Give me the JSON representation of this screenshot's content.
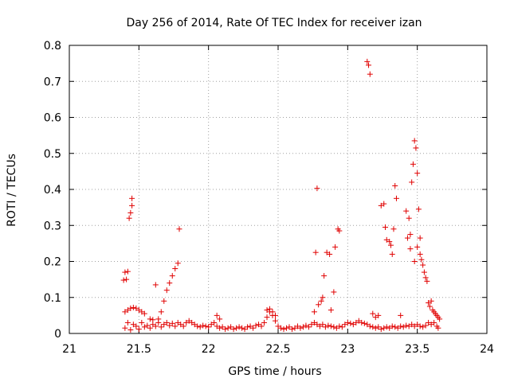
{
  "chart_data": {
    "type": "scatter",
    "title": "Day 256 of 2014, Rate Of TEC Index for receiver izan",
    "xlabel": "GPS time / hours",
    "ylabel": "ROTI / TECUs",
    "xlim": [
      21,
      24
    ],
    "ylim": [
      0,
      0.8
    ],
    "xticks": [
      "21",
      "21.5",
      "22",
      "22.5",
      "23",
      "23.5",
      "24"
    ],
    "yticks": [
      "0",
      "0.1",
      "0.2",
      "0.3",
      "0.4",
      "0.5",
      "0.6",
      "0.7",
      "0.8"
    ],
    "grid": true,
    "marker": "+",
    "color": "#e00000",
    "series": [
      {
        "name": "ROTI",
        "points": [
          [
            21.4,
            0.015
          ],
          [
            21.42,
            0.03
          ],
          [
            21.44,
            0.01
          ],
          [
            21.46,
            0.025
          ],
          [
            21.48,
            0.02
          ],
          [
            21.5,
            0.012
          ],
          [
            21.52,
            0.03
          ],
          [
            21.54,
            0.018
          ],
          [
            21.56,
            0.022
          ],
          [
            21.58,
            0.015
          ],
          [
            21.6,
            0.025
          ],
          [
            21.62,
            0.02
          ],
          [
            21.64,
            0.03
          ],
          [
            21.66,
            0.018
          ],
          [
            21.68,
            0.025
          ],
          [
            21.7,
            0.03
          ],
          [
            21.72,
            0.022
          ],
          [
            21.74,
            0.028
          ],
          [
            21.76,
            0.02
          ],
          [
            21.78,
            0.03
          ],
          [
            21.8,
            0.025
          ],
          [
            21.82,
            0.02
          ],
          [
            21.84,
            0.03
          ],
          [
            21.86,
            0.035
          ],
          [
            21.88,
            0.03
          ],
          [
            21.9,
            0.025
          ],
          [
            21.92,
            0.02
          ],
          [
            21.94,
            0.018
          ],
          [
            21.96,
            0.022
          ],
          [
            21.98,
            0.02
          ],
          [
            22.0,
            0.018
          ],
          [
            22.02,
            0.025
          ],
          [
            22.04,
            0.03
          ],
          [
            22.06,
            0.02
          ],
          [
            22.08,
            0.015
          ],
          [
            22.1,
            0.018
          ],
          [
            22.12,
            0.012
          ],
          [
            22.14,
            0.015
          ],
          [
            22.16,
            0.018
          ],
          [
            22.18,
            0.012
          ],
          [
            22.2,
            0.015
          ],
          [
            22.22,
            0.018
          ],
          [
            22.24,
            0.015
          ],
          [
            22.26,
            0.012
          ],
          [
            22.28,
            0.018
          ],
          [
            22.3,
            0.02
          ],
          [
            22.32,
            0.015
          ],
          [
            22.34,
            0.022
          ],
          [
            22.36,
            0.025
          ],
          [
            22.38,
            0.02
          ],
          [
            22.4,
            0.03
          ],
          [
            22.42,
            0.045
          ],
          [
            22.44,
            0.06
          ],
          [
            22.46,
            0.05
          ],
          [
            22.48,
            0.035
          ],
          [
            22.5,
            0.02
          ],
          [
            22.52,
            0.015
          ],
          [
            22.54,
            0.012
          ],
          [
            22.56,
            0.015
          ],
          [
            22.58,
            0.018
          ],
          [
            22.6,
            0.012
          ],
          [
            22.62,
            0.015
          ],
          [
            22.64,
            0.02
          ],
          [
            22.66,
            0.015
          ],
          [
            22.68,
            0.018
          ],
          [
            22.7,
            0.022
          ],
          [
            22.72,
            0.018
          ],
          [
            22.74,
            0.025
          ],
          [
            22.76,
            0.03
          ],
          [
            22.78,
            0.025
          ],
          [
            22.8,
            0.02
          ],
          [
            22.82,
            0.025
          ],
          [
            22.84,
            0.018
          ],
          [
            22.86,
            0.022
          ],
          [
            22.88,
            0.02
          ],
          [
            22.9,
            0.018
          ],
          [
            22.92,
            0.015
          ],
          [
            22.94,
            0.02
          ],
          [
            22.96,
            0.018
          ],
          [
            22.98,
            0.025
          ],
          [
            23.0,
            0.03
          ],
          [
            23.02,
            0.028
          ],
          [
            23.04,
            0.025
          ],
          [
            23.06,
            0.03
          ],
          [
            23.08,
            0.035
          ],
          [
            23.1,
            0.03
          ],
          [
            23.12,
            0.028
          ],
          [
            23.14,
            0.025
          ],
          [
            23.16,
            0.02
          ],
          [
            23.18,
            0.018
          ],
          [
            23.2,
            0.015
          ],
          [
            23.22,
            0.018
          ],
          [
            23.24,
            0.012
          ],
          [
            23.26,
            0.015
          ],
          [
            23.28,
            0.018
          ],
          [
            23.3,
            0.015
          ],
          [
            23.32,
            0.02
          ],
          [
            23.34,
            0.018
          ],
          [
            23.36,
            0.015
          ],
          [
            23.38,
            0.02
          ],
          [
            23.4,
            0.018
          ],
          [
            23.42,
            0.022
          ],
          [
            23.44,
            0.02
          ],
          [
            23.46,
            0.025
          ],
          [
            23.48,
            0.02
          ],
          [
            23.5,
            0.025
          ],
          [
            23.52,
            0.02
          ],
          [
            23.54,
            0.018
          ],
          [
            23.56,
            0.022
          ],
          [
            23.58,
            0.03
          ],
          [
            23.6,
            0.025
          ],
          [
            23.62,
            0.03
          ],
          [
            23.64,
            0.02
          ],
          [
            23.65,
            0.015
          ],
          [
            21.39,
            0.148
          ],
          [
            21.4,
            0.17
          ],
          [
            21.42,
            0.172
          ],
          [
            21.41,
            0.15
          ],
          [
            21.43,
            0.32
          ],
          [
            21.44,
            0.335
          ],
          [
            21.45,
            0.355
          ],
          [
            21.45,
            0.375
          ],
          [
            21.4,
            0.06
          ],
          [
            21.42,
            0.065
          ],
          [
            21.44,
            0.07
          ],
          [
            21.46,
            0.072
          ],
          [
            21.48,
            0.07
          ],
          [
            21.5,
            0.065
          ],
          [
            21.52,
            0.06
          ],
          [
            21.54,
            0.055
          ],
          [
            21.58,
            0.04
          ],
          [
            21.6,
            0.038
          ],
          [
            21.62,
            0.135
          ],
          [
            21.64,
            0.04
          ],
          [
            21.66,
            0.06
          ],
          [
            21.68,
            0.09
          ],
          [
            21.7,
            0.12
          ],
          [
            21.72,
            0.14
          ],
          [
            21.74,
            0.16
          ],
          [
            21.76,
            0.18
          ],
          [
            21.78,
            0.195
          ],
          [
            21.79,
            0.29
          ],
          [
            22.06,
            0.05
          ],
          [
            22.08,
            0.04
          ],
          [
            22.42,
            0.065
          ],
          [
            22.44,
            0.068
          ],
          [
            22.46,
            0.06
          ],
          [
            22.48,
            0.05
          ],
          [
            22.76,
            0.06
          ],
          [
            22.77,
            0.225
          ],
          [
            22.78,
            0.403
          ],
          [
            22.79,
            0.08
          ],
          [
            22.81,
            0.09
          ],
          [
            22.82,
            0.1
          ],
          [
            22.83,
            0.16
          ],
          [
            22.85,
            0.225
          ],
          [
            22.87,
            0.22
          ],
          [
            22.88,
            0.065
          ],
          [
            22.9,
            0.115
          ],
          [
            22.91,
            0.24
          ],
          [
            22.93,
            0.29
          ],
          [
            22.94,
            0.285
          ],
          [
            23.14,
            0.755
          ],
          [
            23.15,
            0.745
          ],
          [
            23.16,
            0.72
          ],
          [
            23.18,
            0.055
          ],
          [
            23.2,
            0.045
          ],
          [
            23.22,
            0.05
          ],
          [
            23.24,
            0.355
          ],
          [
            23.26,
            0.36
          ],
          [
            23.27,
            0.295
          ],
          [
            23.28,
            0.26
          ],
          [
            23.3,
            0.255
          ],
          [
            23.31,
            0.245
          ],
          [
            23.32,
            0.22
          ],
          [
            23.33,
            0.29
          ],
          [
            23.34,
            0.41
          ],
          [
            23.35,
            0.375
          ],
          [
            23.38,
            0.05
          ],
          [
            23.42,
            0.34
          ],
          [
            23.43,
            0.265
          ],
          [
            23.44,
            0.32
          ],
          [
            23.45,
            0.275
          ],
          [
            23.46,
            0.42
          ],
          [
            23.47,
            0.47
          ],
          [
            23.48,
            0.535
          ],
          [
            23.49,
            0.515
          ],
          [
            23.5,
            0.445
          ],
          [
            23.51,
            0.345
          ],
          [
            23.52,
            0.265
          ],
          [
            23.45,
            0.235
          ],
          [
            23.48,
            0.2
          ],
          [
            23.5,
            0.24
          ],
          [
            23.52,
            0.22
          ],
          [
            23.53,
            0.205
          ],
          [
            23.54,
            0.19
          ],
          [
            23.55,
            0.17
          ],
          [
            23.56,
            0.155
          ],
          [
            23.57,
            0.145
          ],
          [
            23.58,
            0.085
          ],
          [
            23.59,
            0.075
          ],
          [
            23.6,
            0.09
          ],
          [
            23.61,
            0.065
          ],
          [
            23.62,
            0.06
          ],
          [
            23.63,
            0.055
          ],
          [
            23.64,
            0.05
          ],
          [
            23.65,
            0.045
          ],
          [
            23.66,
            0.04
          ]
        ]
      }
    ]
  }
}
